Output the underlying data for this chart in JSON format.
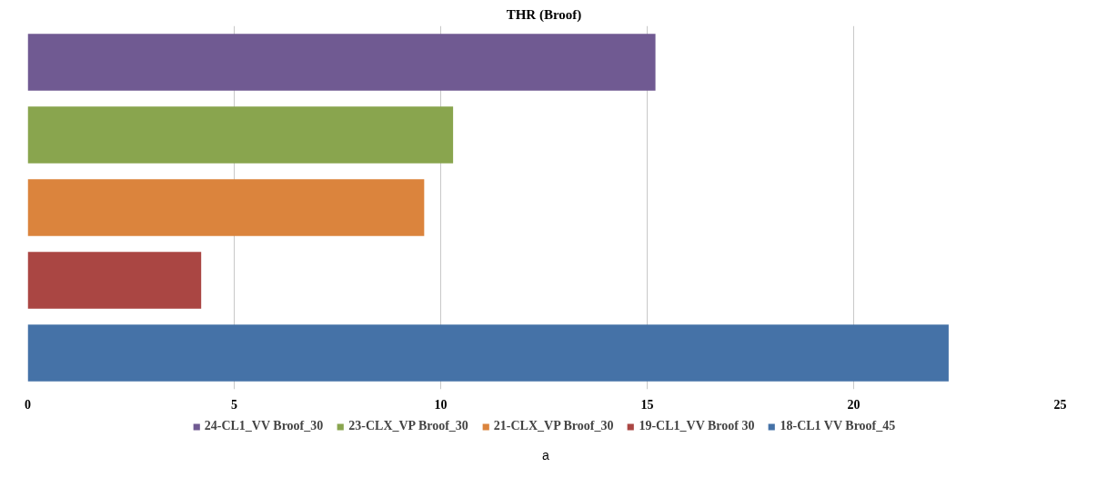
{
  "chart_data": {
    "type": "bar",
    "orientation": "horizontal",
    "title": "THR (Broof)",
    "categories": [
      null,
      null,
      null,
      null,
      null
    ],
    "series": [
      {
        "name": "24-CL1_VV Broof_30",
        "color": "#705a92",
        "values": [
          15.2,
          null,
          null,
          null,
          null
        ]
      },
      {
        "name": "23-CLX_VP Broof_30",
        "color": "#89a54e",
        "values": [
          null,
          10.3,
          null,
          null,
          null
        ]
      },
      {
        "name": "21-CLX_VP Broof_30",
        "color": "#db843d",
        "values": [
          null,
          null,
          9.6,
          null,
          null
        ]
      },
      {
        "name": "19-CL1_VV Broof 30",
        "color": "#aa4643",
        "values": [
          null,
          null,
          null,
          4.2,
          null
        ]
      },
      {
        "name": "18-CL1 VV Broof_45",
        "color": "#4572a7",
        "values": [
          null,
          null,
          null,
          null,
          22.3
        ]
      }
    ],
    "xlim": [
      0,
      25
    ],
    "xticks": [
      0,
      5,
      10,
      15,
      20,
      25
    ],
    "grid": "x",
    "legend": "bottom",
    "annotations": [
      "a"
    ]
  }
}
